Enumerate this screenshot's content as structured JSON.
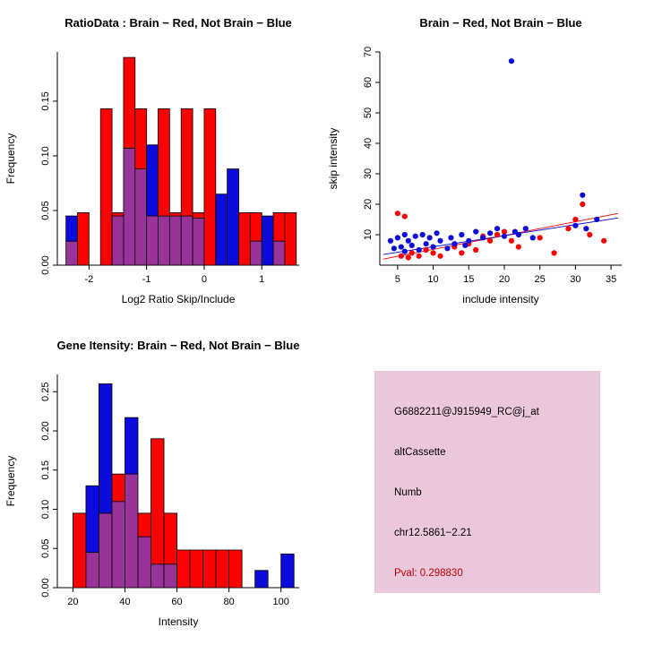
{
  "page": {
    "background": "#ffffff"
  },
  "colors": {
    "red": "#ff0000",
    "blue": "#0b0bdc",
    "purple": "#993399",
    "axis": "#000000"
  },
  "chart_data": [
    {
      "id": "ratio-hist",
      "type": "bar",
      "subtype": "overlaid-histogram",
      "title": "RatioData : Brain − Red, Not Brain − Blue",
      "xlabel": "Log2 Ratio Skip/Include",
      "ylabel": "Frequency",
      "xlim": [
        -2.55,
        1.65
      ],
      "ylim": [
        0,
        0.195
      ],
      "xticks": [
        -2,
        -1,
        0,
        1
      ],
      "xtick_labels": [
        "-2",
        "-1",
        "0",
        "1"
      ],
      "yticks": [
        0,
        0.05,
        0.1,
        0.15
      ],
      "ytick_labels": [
        "0.00",
        "0.05",
        "0.10",
        "0.15"
      ],
      "bin_width": 0.2,
      "legend_note": "red = Brain, blue = Not Brain, purple = overlap",
      "bins": [
        {
          "x": -2.4,
          "red": 0.022,
          "blue": 0.045
        },
        {
          "x": -2.2,
          "red": 0.048,
          "blue": 0
        },
        {
          "x": -2.0,
          "red": 0,
          "blue": 0
        },
        {
          "x": -1.8,
          "red": 0.143,
          "blue": 0
        },
        {
          "x": -1.6,
          "red": 0.048,
          "blue": 0.045
        },
        {
          "x": -1.4,
          "red": 0.19,
          "blue": 0.107
        },
        {
          "x": -1.2,
          "red": 0.143,
          "blue": 0.088
        },
        {
          "x": -1.0,
          "red": 0.045,
          "blue": 0.11
        },
        {
          "x": -0.8,
          "red": 0.143,
          "blue": 0.045
        },
        {
          "x": -0.6,
          "red": 0.048,
          "blue": 0.045
        },
        {
          "x": -0.4,
          "red": 0.143,
          "blue": 0.045
        },
        {
          "x": -0.2,
          "red": 0.048,
          "blue": 0.043
        },
        {
          "x": 0.0,
          "red": 0.143,
          "blue": 0
        },
        {
          "x": 0.2,
          "red": 0,
          "blue": 0.065
        },
        {
          "x": 0.4,
          "red": 0,
          "blue": 0.088
        },
        {
          "x": 0.6,
          "red": 0.048,
          "blue": 0
        },
        {
          "x": 0.8,
          "red": 0.048,
          "blue": 0.022
        },
        {
          "x": 1.0,
          "red": 0,
          "blue": 0.045
        },
        {
          "x": 1.2,
          "red": 0.048,
          "blue": 0.022
        },
        {
          "x": 1.4,
          "red": 0.048,
          "blue": 0
        }
      ]
    },
    {
      "id": "intensity-scatter",
      "type": "scatter",
      "title": "Brain − Red, Not Brain − Blue",
      "xlabel": "include intensity",
      "ylabel": "skip intensity",
      "xlim": [
        2.5,
        36.5
      ],
      "ylim": [
        0,
        70
      ],
      "xticks": [
        5,
        10,
        15,
        20,
        25,
        30,
        35
      ],
      "xtick_labels": [
        "5",
        "10",
        "15",
        "20",
        "25",
        "30",
        "35"
      ],
      "yticks": [
        10,
        20,
        30,
        40,
        50,
        60,
        70
      ],
      "ytick_labels": [
        "10",
        "20",
        "30",
        "40",
        "50",
        "60",
        "70"
      ],
      "series": [
        {
          "name": "brain-red",
          "color_key": "red",
          "points": [
            [
              5,
              17
            ],
            [
              5.5,
              3
            ],
            [
              6,
              16
            ],
            [
              6.5,
              2.5
            ],
            [
              7,
              4
            ],
            [
              8,
              3
            ],
            [
              9,
              5
            ],
            [
              10,
              4
            ],
            [
              11,
              3
            ],
            [
              13,
              6
            ],
            [
              14,
              4
            ],
            [
              15,
              7
            ],
            [
              16,
              5
            ],
            [
              17,
              9.5
            ],
            [
              18,
              8
            ],
            [
              19,
              10
            ],
            [
              20,
              11
            ],
            [
              21,
              8
            ],
            [
              22,
              6
            ],
            [
              25,
              9
            ],
            [
              27,
              4
            ],
            [
              29,
              12
            ],
            [
              30,
              15
            ],
            [
              31,
              20
            ],
            [
              32,
              10
            ],
            [
              34,
              8
            ]
          ]
        },
        {
          "name": "not-brain-blue",
          "color_key": "blue",
          "points": [
            [
              4,
              8
            ],
            [
              4.5,
              5.5
            ],
            [
              5,
              9
            ],
            [
              5.5,
              6
            ],
            [
              6,
              10
            ],
            [
              6,
              4.5
            ],
            [
              6.5,
              8
            ],
            [
              7,
              6.5
            ],
            [
              7.5,
              9.5
            ],
            [
              8,
              5
            ],
            [
              8.5,
              10
            ],
            [
              9,
              7
            ],
            [
              9.5,
              9
            ],
            [
              10,
              6
            ],
            [
              10.5,
              10.5
            ],
            [
              11,
              8
            ],
            [
              12,
              5.5
            ],
            [
              12.5,
              9
            ],
            [
              13,
              7
            ],
            [
              14,
              10
            ],
            [
              14.5,
              6.5
            ],
            [
              15,
              8
            ],
            [
              16,
              11
            ],
            [
              17,
              9
            ],
            [
              18,
              10.5
            ],
            [
              19,
              12
            ],
            [
              20,
              9.5
            ],
            [
              21,
              67
            ],
            [
              21.5,
              11
            ],
            [
              22,
              10
            ],
            [
              23,
              12
            ],
            [
              24,
              9
            ],
            [
              30,
              13
            ],
            [
              31,
              23
            ],
            [
              31.5,
              12
            ],
            [
              33,
              15
            ]
          ]
        }
      ],
      "lines": [
        {
          "name": "fit-red",
          "color_key": "red",
          "x1": 3,
          "y1": 2,
          "x2": 36,
          "y2": 17
        },
        {
          "name": "fit-blue",
          "color_key": "blue",
          "x1": 3,
          "y1": 3.5,
          "x2": 36,
          "y2": 15.5
        }
      ]
    },
    {
      "id": "gene-hist",
      "type": "bar",
      "subtype": "overlaid-histogram",
      "title": "Gene Itensity: Brain − Red, Not Brain − Blue",
      "xlabel": "Intensity",
      "ylabel": "Frequency",
      "xlim": [
        14,
        107
      ],
      "ylim": [
        0,
        0.272
      ],
      "xticks": [
        20,
        40,
        60,
        80,
        100
      ],
      "xtick_labels": [
        "20",
        "40",
        "60",
        "80",
        "100"
      ],
      "yticks": [
        0,
        0.05,
        0.1,
        0.15,
        0.2,
        0.25
      ],
      "ytick_labels": [
        "0.00",
        "0.05",
        "0.10",
        "0.15",
        "0.20",
        "0.25"
      ],
      "bin_width": 5,
      "legend_note": "red = Brain, blue = Not Brain, purple = overlap",
      "bins": [
        {
          "x": 20,
          "red": 0.095,
          "blue": 0
        },
        {
          "x": 25,
          "red": 0.045,
          "blue": 0.13
        },
        {
          "x": 30,
          "red": 0.095,
          "blue": 0.26
        },
        {
          "x": 35,
          "red": 0.145,
          "blue": 0.11
        },
        {
          "x": 40,
          "red": 0.145,
          "blue": 0.217
        },
        {
          "x": 45,
          "red": 0.095,
          "blue": 0.065
        },
        {
          "x": 50,
          "red": 0.19,
          "blue": 0.03
        },
        {
          "x": 55,
          "red": 0.095,
          "blue": 0.03
        },
        {
          "x": 60,
          "red": 0.048,
          "blue": 0
        },
        {
          "x": 65,
          "red": 0.048,
          "blue": 0
        },
        {
          "x": 70,
          "red": 0.048,
          "blue": 0
        },
        {
          "x": 75,
          "red": 0.048,
          "blue": 0
        },
        {
          "x": 80,
          "red": 0.048,
          "blue": 0
        },
        {
          "x": 90,
          "red": 0,
          "blue": 0.022
        },
        {
          "x": 100,
          "red": 0,
          "blue": 0.043
        }
      ]
    }
  ],
  "info_box": {
    "bg": "#EAC7DB",
    "lines": [
      "G6882211@J915949_RC@j_at",
      "altCassette",
      "Numb",
      "chr12.5861−2.21"
    ],
    "pval_text": "Pval: 0.298830",
    "pval_color": "#C00000"
  }
}
